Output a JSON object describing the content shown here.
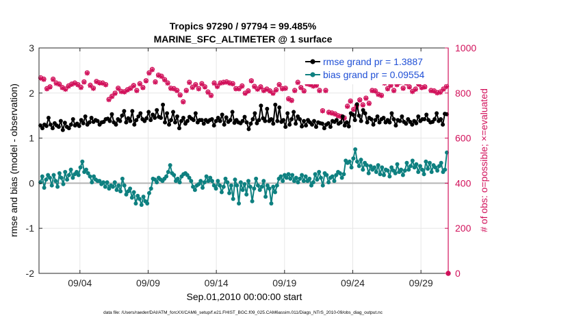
{
  "chart_data": {
    "type": "line",
    "title": "Tropics 97290 / 97794 = 99.485%",
    "subtitle": "MARINE_SFC_ALTIMETER @ 1 surface",
    "xlabel": "Sep.01,2010 00:00:00 start",
    "ylabel_left": "rmse and bias (model - observation)",
    "ylabel_right": "# of obs: o=possible; ×=evaluated",
    "footnote": "data file: /Users/raeder/DAI/ATM_forcXX/CAM6_setup/f.e21.FHIST_BGC.f09_025.CAM6assim.011/Diags_NTrS_2010-09/obs_diag_output.nc",
    "x_range_days": [
      0,
      30
    ],
    "xticks": [
      {
        "day": 3,
        "label": "09/04"
      },
      {
        "day": 8,
        "label": "09/09"
      },
      {
        "day": 13,
        "label": "09/14"
      },
      {
        "day": 18,
        "label": "09/19"
      },
      {
        "day": 23,
        "label": "09/24"
      },
      {
        "day": 28,
        "label": "09/29"
      }
    ],
    "ylim_left": [
      -2,
      3
    ],
    "yticks_left": [
      -2,
      -1,
      0,
      1,
      2,
      3
    ],
    "ylim_right": [
      0,
      1000
    ],
    "yticks_right": [
      0,
      200,
      400,
      600,
      800,
      1000
    ],
    "grid": true,
    "legend_position": "top-right",
    "colors": {
      "rmse": "#000000",
      "bias": "#0e8080",
      "obs": "#d1105a",
      "zero_line": "#b4b4b4",
      "grid": "#e6e6e6",
      "legend_text": "#1f4fd6"
    },
    "series": [
      {
        "name": "rmse grand pr = 1.3887",
        "key": "rmse",
        "values": [
          1.28,
          1.22,
          1.3,
          1.27,
          1.45,
          1.3,
          1.22,
          1.33,
          1.28,
          1.25,
          1.38,
          1.18,
          1.34,
          1.25,
          1.22,
          1.3,
          1.42,
          1.28,
          1.32,
          1.27,
          1.4,
          1.33,
          1.48,
          1.3,
          1.35,
          1.45,
          1.36,
          1.4,
          1.38,
          1.3,
          1.35,
          1.36,
          1.42,
          1.43,
          1.38,
          1.53,
          1.35,
          1.3,
          1.42,
          1.38,
          1.5,
          1.6,
          1.35,
          1.44,
          1.38,
          1.6,
          1.3,
          1.4,
          1.48,
          1.55,
          1.42,
          1.38,
          1.44,
          1.58,
          1.4,
          1.52,
          1.45,
          1.62,
          1.47,
          1.45,
          1.74,
          1.35,
          1.55,
          1.3,
          1.4,
          1.58,
          1.35,
          1.48,
          1.22,
          1.38,
          1.45,
          1.32,
          1.38,
          1.47,
          1.43,
          1.4,
          1.55,
          1.35,
          1.4,
          1.4,
          1.32,
          1.4,
          1.36,
          1.4,
          1.42,
          1.28,
          1.38,
          1.45,
          1.38,
          1.52,
          1.3,
          1.46,
          1.36,
          1.4,
          1.58,
          1.34,
          1.4,
          1.35,
          1.33,
          1.38,
          1.47,
          1.35,
          1.2,
          1.32,
          1.42,
          1.55,
          1.33,
          1.4,
          1.72,
          1.44,
          1.38,
          1.65,
          1.38,
          1.42,
          1.32,
          1.74,
          1.38,
          1.68,
          1.36,
          1.4,
          1.25,
          1.55,
          1.3,
          1.42,
          1.58,
          1.32,
          1.48,
          1.42,
          1.26,
          1.38,
          1.28,
          1.4,
          1.35,
          1.3,
          1.38,
          1.25,
          1.35,
          1.33,
          1.32,
          1.22,
          1.3,
          1.33,
          1.25,
          1.38,
          1.36,
          1.4,
          1.32,
          1.35,
          1.48,
          1.28,
          1.35,
          1.26,
          1.55,
          1.52,
          1.4,
          1.75,
          1.5,
          1.38,
          1.62,
          1.55,
          1.35,
          1.45,
          1.42,
          1.3,
          1.4,
          1.48,
          1.35,
          1.42,
          1.45,
          1.35,
          1.4,
          1.35,
          1.55,
          1.42,
          1.28,
          1.4,
          1.38,
          1.48,
          1.36,
          1.32,
          1.42,
          1.36,
          1.3,
          1.38,
          1.33,
          1.48,
          1.38,
          1.42,
          1.42,
          1.52,
          1.4,
          1.35,
          1.36,
          1.42,
          1.55,
          1.38,
          1.42,
          1.3,
          1.54,
          1.53
        ]
      },
      {
        "name": "bias grand pr = 0.09554",
        "key": "bias",
        "values": [
          0.02,
          0.15,
          -0.1,
          0.08,
          0.18,
          0.12,
          -0.05,
          0.18,
          0.05,
          -0.08,
          0.22,
          0.12,
          -0.02,
          0.25,
          0.08,
          0.18,
          0.3,
          0.12,
          0.2,
          0.25,
          0.18,
          0.35,
          0.48,
          0.25,
          0.3,
          0.22,
          0.15,
          0.02,
          0.15,
          0.08,
          0.05,
          0.05,
          -0.02,
          0.02,
          -0.08,
          0.02,
          -0.12,
          -0.05,
          -0.08,
          0.02,
          -0.15,
          -0.05,
          -0.18,
          0.1,
          -0.05,
          -0.25,
          -0.18,
          -0.12,
          -0.32,
          -0.2,
          -0.45,
          -0.28,
          -0.35,
          -0.48,
          -0.3,
          -0.4,
          -0.45,
          -0.22,
          -0.12,
          0.1,
          0.08,
          0.02,
          0.12,
          0.08,
          0.05,
          0.1,
          0.15,
          0.25,
          0.4,
          0.22,
          0.18,
          0.05,
          0.1,
          0.02,
          0.15,
          0.2,
          0.22,
          0.18,
          0.12,
          0.05,
          -0.08,
          -0.15,
          -0.05,
          -0.02,
          0.05,
          -0.1,
          0.02,
          0.15,
          0.05,
          0.12,
          0.05,
          -0.05,
          -0.12,
          0.05,
          -0.05,
          -0.2,
          -0.08,
          0.1,
          0.02,
          -0.22,
          -0.05,
          -0.35,
          0.08,
          -0.05,
          -0.45,
          0.02,
          -0.15,
          -0.02,
          -0.25,
          0.05,
          -0.08,
          -0.4,
          -0.12,
          0.1,
          -0.05,
          -0.15,
          -0.08,
          0.05,
          -0.3,
          -0.05,
          -0.12,
          -0.45,
          -0.08,
          -0.2,
          -0.05,
          0.1,
          0.15,
          0.05,
          0.18,
          0.12,
          0.2,
          0.1,
          0.18,
          0.05,
          0.12,
          0.02,
          0.1,
          0.18,
          0.05,
          0.15,
          0.05,
          0.1,
          -0.05,
          0.02,
          0.2,
          0.08,
          0.25,
          0.12,
          -0.05,
          0.22,
          0.18,
          0.02,
          0.12,
          0.15,
          0.05,
          0.18,
          0.25,
          0.22,
          0.12,
          0.2,
          0.5,
          0.45,
          0.48,
          0.35,
          0.55,
          0.75,
          0.48,
          0.38,
          0.52,
          0.3,
          0.45,
          0.4,
          0.22,
          0.38,
          0.3,
          0.35,
          0.25,
          0.4,
          0.2,
          0.35,
          0.18,
          0.3,
          0.28,
          0.15,
          0.35,
          0.28,
          0.22,
          0.42,
          0.25,
          0.3,
          0.18,
          0.28,
          0.45,
          0.3,
          0.38,
          0.5,
          0.35,
          0.42,
          0.25,
          0.38,
          0.3,
          0.2,
          0.48,
          0.32,
          0.45,
          0.25,
          0.4,
          0.35,
          0.28,
          0.38,
          0.45,
          0.25,
          0.3,
          0.68
        ]
      },
      {
        "name": "# of obs possible",
        "key": "obs",
        "marker": "o",
        "values": [
          868,
          862,
          820,
          828,
          862,
          845,
          840,
          825,
          818,
          832,
          840,
          845,
          838,
          826,
          850,
          890,
          835,
          822,
          852,
          846,
          845,
          838,
          772,
          786,
          800,
          822,
          808,
          806,
          815,
          822,
          834,
          812,
          842,
          825,
          855,
          890,
          905,
          850,
          880,
          875,
          860,
          845,
          822,
          820,
          812,
          792,
          762,
          812,
          848,
          826,
          838,
          820,
          842,
          828,
          805,
          790,
          845,
          830,
          845,
          848,
          850,
          845,
          842,
          820,
          820,
          832,
          800,
          810,
          855,
          830,
          818,
          828,
          812,
          818,
          810,
          800,
          815,
          838,
          820,
          822,
          775,
          768,
          812,
          848,
          825,
          810,
          842,
          838,
          832,
          835,
          812,
          722,
          812,
          715,
          712,
          708,
          700,
          696,
          690,
          742,
          765,
          728,
          745,
          770,
          748,
          778,
          755,
          812,
          810,
          795,
          790,
          845,
          820,
          835,
          812,
          838,
          848,
          822,
          845,
          828,
          808,
          818,
          840,
          825,
          828,
          858,
          812,
          810,
          802,
          805,
          818,
          830
        ]
      },
      {
        "name": "# of obs evaluated",
        "key": "obs_eval",
        "marker": "x",
        "values": [
          865,
          860,
          818,
          826,
          860,
          842,
          838,
          823,
          816,
          830,
          838,
          843,
          836,
          824,
          848,
          888,
          833,
          820,
          850,
          844,
          843,
          836,
          770,
          784,
          798,
          820,
          806,
          804,
          813,
          820,
          832,
          810,
          840,
          823,
          853,
          888,
          903,
          848,
          878,
          873,
          858,
          843,
          820,
          818,
          810,
          790,
          760,
          810,
          846,
          824,
          836,
          818,
          840,
          826,
          803,
          788,
          843,
          828,
          843,
          846,
          848,
          843,
          840,
          818,
          818,
          830,
          798,
          808,
          853,
          828,
          816,
          826,
          810,
          816,
          808,
          798,
          813,
          836,
          818,
          820,
          773,
          766,
          810,
          846,
          823,
          808,
          840,
          836,
          830,
          833,
          810,
          720,
          810,
          713,
          710,
          706,
          698,
          694,
          688,
          740,
          763,
          726,
          743,
          768,
          746,
          776,
          753,
          810,
          808,
          793,
          788,
          843,
          818,
          833,
          810,
          836,
          846,
          820,
          843,
          826,
          806,
          816,
          838,
          823,
          826,
          856,
          810,
          808,
          800,
          803,
          816,
          828
        ]
      }
    ],
    "last_obs_point": {
      "day": 30,
      "value": 0
    }
  }
}
